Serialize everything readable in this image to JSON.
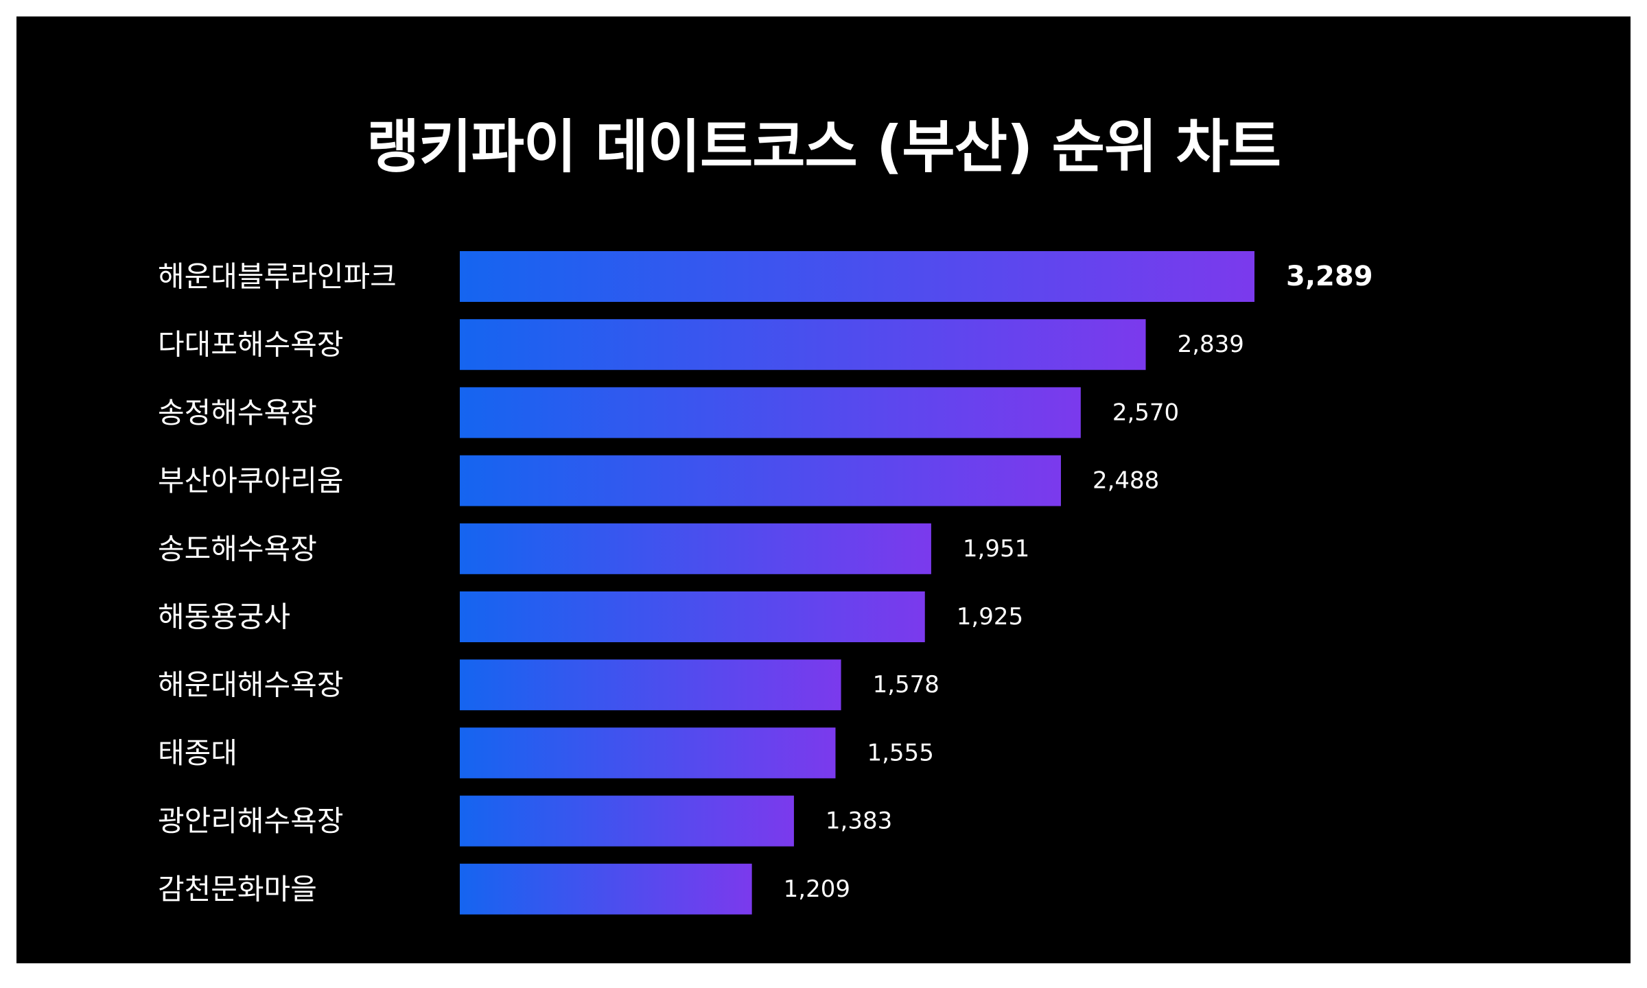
{
  "colors": {
    "background": "#000000",
    "bar_start": "#1565f0",
    "bar_end": "#7b3aed",
    "text": "#ffffff"
  },
  "chart_data": {
    "type": "bar",
    "orientation": "horizontal",
    "title": "랭키파이 데이트코스 (부산) 순위 차트",
    "categories": [
      "해운대블루라인파크",
      "다대포해수욕장",
      "송정해수욕장",
      "부산아쿠아리움",
      "송도해수욕장",
      "해동용궁사",
      "해운대해수욕장",
      "태종대",
      "광안리해수욕장",
      "감천문화마을"
    ],
    "values": [
      3289,
      2839,
      2570,
      2488,
      1951,
      1925,
      1578,
      1555,
      1383,
      1209
    ],
    "value_labels": [
      "3,289",
      "2,839",
      "2,570",
      "2,488",
      "1,951",
      "1,925",
      "1,578",
      "1,555",
      "1,383",
      "1,209"
    ],
    "xlim": [
      0,
      3289
    ],
    "grid": false,
    "legend": "none"
  }
}
